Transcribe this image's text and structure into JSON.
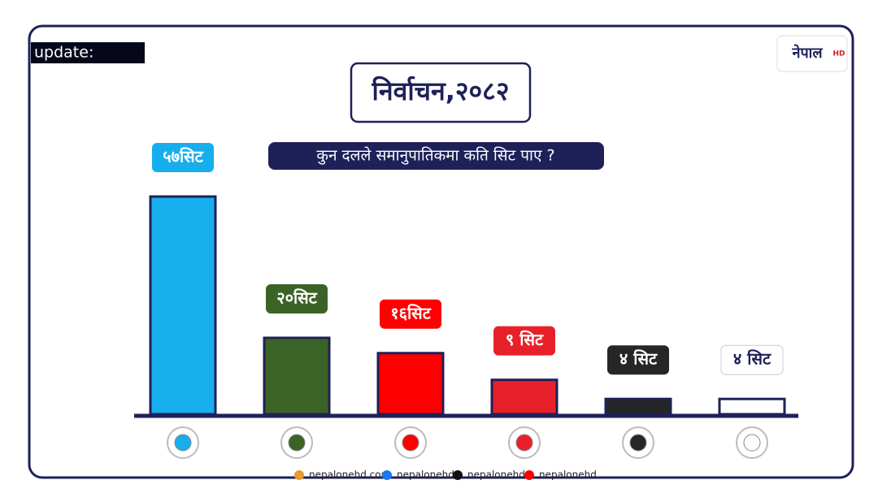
{
  "header": {
    "update": "update:",
    "logo": "नेपाल",
    "logo_sub": "HD"
  },
  "chart_data": {
    "type": "bar",
    "title": "निर्वाचन,२०८२",
    "subtitle": "कुन दलले समानुपातिकमा कति सिट पाए ?",
    "categories": [
      null,
      null,
      null,
      null,
      null,
      null
    ],
    "values": [
      57,
      20,
      16,
      9,
      4,
      4
    ],
    "value_labels": [
      "५७सिट",
      "२०सिट",
      "१६सिट",
      "९ सिट",
      "४ सिट",
      "४ सिट"
    ],
    "colors": [
      "#17aeee",
      "#3c6326",
      "#ff0000",
      "#e8202a",
      "#262626",
      "#ffffff"
    ]
  },
  "footer": {
    "website": "nepalonehd.com",
    "facebook": "nepalonehd",
    "tiktok": "nepalonehd",
    "youtube": "nepalonehd"
  }
}
